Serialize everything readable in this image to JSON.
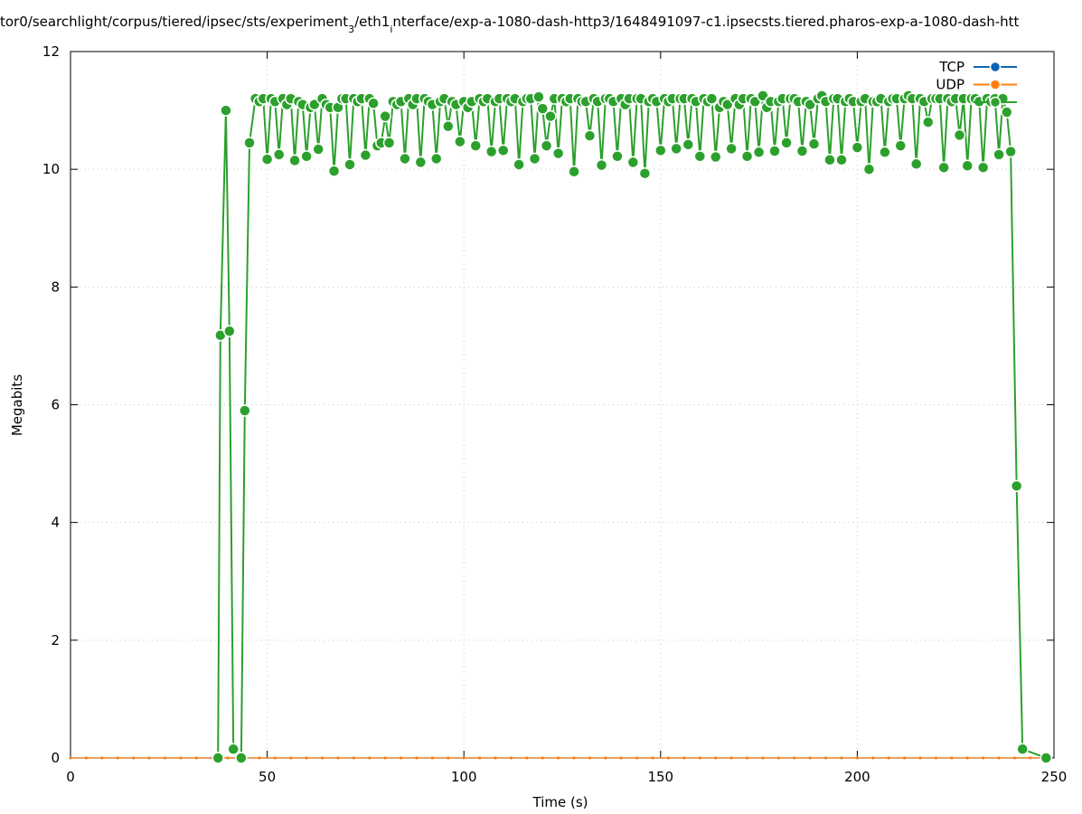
{
  "chart_data": {
    "type": "line",
    "title": [
      {
        "text": "tor0/searchlight/corpus/tiered/ipsec/sts/experiment"
      },
      {
        "text": "3",
        "sub": true
      },
      {
        "text": "/eth1"
      },
      {
        "text": "i",
        "sub": true
      },
      {
        "text": "nterface/exp-a-1080-dash-http3/1648491097-c1.ipsecsts.tiered.pharos-exp-a-1080-dash-htt"
      }
    ],
    "xlabel": "Time (s)",
    "ylabel": "Megabits",
    "xlim": [
      0,
      250
    ],
    "ylim": [
      0,
      12
    ],
    "xticks": [
      0,
      50,
      100,
      150,
      200,
      250
    ],
    "yticks": [
      0,
      2,
      4,
      6,
      8,
      10,
      12
    ],
    "grid": true,
    "legend": "upper right",
    "series": [
      {
        "name": "TCP",
        "color": "#0b64b4",
        "x": [
          0,
          4,
          8,
          12,
          16,
          20,
          24,
          28,
          32,
          36,
          40,
          44,
          48,
          52,
          56,
          60,
          64,
          68,
          72,
          76,
          80,
          84,
          88,
          92,
          96,
          100,
          104,
          108,
          112,
          116,
          120,
          124,
          128,
          132,
          136,
          140,
          144,
          148,
          152,
          156,
          160,
          164,
          168,
          172,
          176,
          180,
          184,
          188,
          192,
          196,
          200,
          204,
          208,
          212,
          216,
          220,
          224,
          228,
          232,
          236,
          240,
          244,
          248
        ],
        "values": [
          0,
          0,
          0,
          0,
          0,
          0,
          0,
          0,
          0,
          0,
          0,
          0,
          0,
          0,
          0,
          0,
          0,
          0,
          0,
          0,
          0,
          0,
          0,
          0,
          0,
          0,
          0,
          0,
          0,
          0,
          0,
          0,
          0,
          0,
          0,
          0,
          0,
          0,
          0,
          0,
          0,
          0,
          0,
          0,
          0,
          0,
          0,
          0,
          0,
          0,
          0,
          0,
          0,
          0,
          0,
          0,
          0,
          0,
          0,
          0,
          0,
          0,
          0
        ]
      },
      {
        "name": "UDP",
        "color": "#ff7f0e",
        "x": [
          0,
          4,
          8,
          12,
          16,
          20,
          24,
          28,
          32,
          36,
          40,
          44,
          48,
          52,
          56,
          60,
          64,
          68,
          72,
          76,
          80,
          84,
          88,
          92,
          96,
          100,
          104,
          108,
          112,
          116,
          120,
          124,
          128,
          132,
          136,
          140,
          144,
          148,
          152,
          156,
          160,
          164,
          168,
          172,
          176,
          180,
          184,
          188,
          192,
          196,
          200,
          204,
          208,
          212,
          216,
          220,
          224,
          228,
          232,
          236,
          240,
          244,
          248
        ],
        "values": [
          0,
          0,
          0,
          0,
          0,
          0,
          0,
          0,
          0,
          0,
          0,
          0,
          0,
          0,
          0,
          0,
          0,
          0,
          0,
          0,
          0,
          0,
          0,
          0,
          0,
          0,
          0,
          0,
          0,
          0,
          0,
          0,
          0,
          0,
          0,
          0,
          0,
          0,
          0,
          0,
          0,
          0,
          0,
          0,
          0,
          0,
          0,
          0,
          0,
          0,
          0,
          0,
          0,
          0,
          0,
          0,
          0,
          0,
          0,
          0,
          0,
          0,
          0
        ]
      },
      {
        "name": "",
        "color": "#2ca02c",
        "x": [
          37.5,
          38.1,
          39.5,
          40.4,
          41.4,
          43.4,
          44.3,
          45.5,
          47,
          48,
          49,
          50,
          51,
          52,
          53,
          54,
          55,
          56,
          57,
          58,
          59,
          60,
          61,
          62,
          63,
          64,
          65,
          66,
          67,
          68,
          69,
          70,
          71,
          72,
          73,
          74,
          75,
          76,
          77,
          78,
          79,
          80,
          81,
          82,
          83,
          84,
          85,
          86,
          87,
          88,
          89,
          90,
          91,
          92,
          93,
          94,
          95,
          96,
          97,
          98,
          99,
          100,
          101,
          102,
          103,
          104,
          105,
          106,
          107,
          108,
          109,
          110,
          111,
          112,
          113,
          114,
          115,
          116,
          117,
          118,
          119,
          120,
          121,
          122,
          123,
          124,
          125,
          126,
          127,
          128,
          129,
          130,
          131,
          132,
          133,
          134,
          135,
          136,
          137,
          138,
          139,
          140,
          141,
          142,
          143,
          144,
          145,
          146,
          147,
          148,
          149,
          150,
          151,
          152,
          153,
          154,
          155,
          156,
          157,
          158,
          159,
          160,
          161,
          162,
          163,
          164,
          165,
          166,
          167,
          168,
          169,
          170,
          171,
          172,
          173,
          174,
          175,
          176,
          177,
          178,
          179,
          180,
          181,
          182,
          183,
          184,
          185,
          186,
          187,
          188,
          189,
          190,
          191,
          192,
          193,
          194,
          195,
          196,
          197,
          198,
          199,
          200,
          201,
          202,
          203,
          204,
          205,
          206,
          207,
          208,
          209,
          210,
          211,
          212,
          213,
          214,
          215,
          216,
          217,
          218,
          219,
          220,
          221,
          222,
          223,
          224,
          225,
          226,
          227,
          228,
          229,
          230,
          231,
          232,
          233,
          234,
          235,
          236,
          237,
          238,
          239,
          240.5,
          242,
          248
        ],
        "values": [
          0,
          7.18,
          11.0,
          7.25,
          0.15,
          0,
          5.9,
          10.45,
          11.2,
          11.15,
          11.2,
          10.17,
          11.2,
          11.15,
          10.25,
          11.2,
          11.1,
          11.2,
          10.15,
          11.15,
          11.1,
          10.22,
          11.05,
          11.1,
          10.34,
          11.2,
          11.1,
          11.05,
          9.97,
          11.05,
          11.2,
          11.2,
          10.08,
          11.2,
          11.15,
          11.2,
          10.24,
          11.2,
          11.12,
          10.4,
          10.45,
          10.9,
          10.45,
          11.15,
          11.1,
          11.15,
          10.18,
          11.2,
          11.1,
          11.2,
          10.12,
          11.2,
          11.15,
          11.1,
          10.18,
          11.15,
          11.2,
          10.73,
          11.15,
          11.1,
          10.47,
          11.15,
          11.05,
          11.15,
          10.4,
          11.2,
          11.15,
          11.2,
          10.3,
          11.15,
          11.2,
          10.32,
          11.2,
          11.15,
          11.2,
          10.08,
          11.15,
          11.2,
          11.2,
          10.18,
          11.23,
          11.03,
          10.4,
          10.9,
          11.2,
          10.27,
          11.2,
          11.15,
          11.2,
          9.96,
          11.2,
          11.15,
          11.15,
          10.57,
          11.2,
          11.15,
          10.07,
          11.2,
          11.2,
          11.15,
          10.22,
          11.2,
          11.1,
          11.2,
          10.12,
          11.2,
          11.2,
          9.93,
          11.15,
          11.2,
          11.15,
          10.32,
          11.2,
          11.15,
          11.2,
          10.35,
          11.2,
          11.2,
          10.42,
          11.2,
          11.15,
          10.22,
          11.2,
          11.15,
          11.2,
          10.21,
          11.05,
          11.15,
          11.1,
          10.35,
          11.2,
          11.1,
          11.2,
          10.22,
          11.2,
          11.15,
          10.29,
          11.25,
          11.05,
          11.15,
          10.31,
          11.15,
          11.2,
          10.45,
          11.2,
          11.2,
          11.15,
          10.31,
          11.15,
          11.1,
          10.43,
          11.2,
          11.25,
          11.15,
          10.16,
          11.2,
          11.2,
          10.16,
          11.15,
          11.2,
          11.15,
          10.37,
          11.15,
          11.2,
          10.0,
          11.15,
          11.15,
          11.2,
          10.29,
          11.15,
          11.2,
          11.2,
          10.4,
          11.2,
          11.25,
          11.2,
          10.09,
          11.2,
          11.15,
          10.8,
          11.2,
          11.2,
          11.2,
          10.03,
          11.2,
          11.15,
          11.2,
          10.58,
          11.2,
          10.06,
          11.2,
          11.2,
          11.15,
          10.03,
          11.2,
          11.15,
          11.2,
          10.25,
          11.2,
          10.97,
          10.3,
          4.62,
          0.15,
          0
        ]
      }
    ]
  }
}
